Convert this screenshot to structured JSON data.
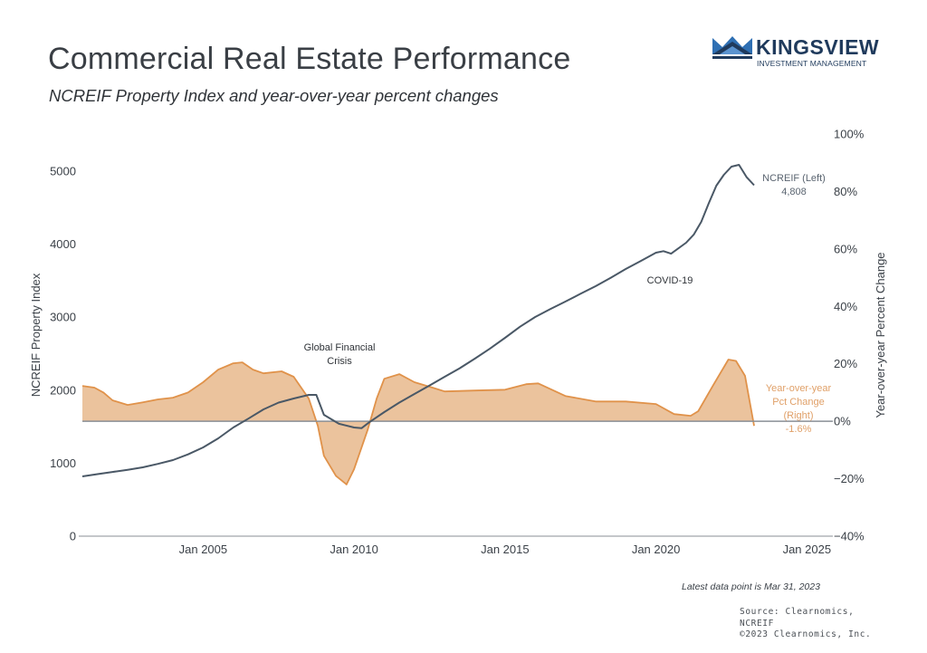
{
  "header": {
    "title": "Commercial Real Estate Performance",
    "subtitle": "NCREIF Property Index and year-over-year percent changes"
  },
  "logo": {
    "name": "KINGSVIEW",
    "tagline": "INVESTMENT MANAGEMENT",
    "icon": "crown-icon",
    "color": "#1f3a5c",
    "accent": "#2e6fb3"
  },
  "footer": {
    "note": "Latest data point is Mar 31, 2023",
    "source_lines": [
      "Source: Clearnomics,",
      "NCREIF",
      "©2023 Clearnomics, Inc."
    ]
  },
  "chart_data": {
    "type": "line",
    "title": "Commercial Real Estate Performance",
    "subtitle": "NCREIF Property Index and year-over-year percent changes",
    "xlabel": "",
    "ylabel_left": "NCREIF Property Index",
    "ylabel_right": "Year-over-year Percent Change",
    "x_range": [
      2001.0,
      2025.8
    ],
    "ylim_left": [
      0,
      5000
    ],
    "ylim_right": [
      -40,
      100
    ],
    "x_ticks": [
      {
        "value": 2005,
        "label": "Jan 2005"
      },
      {
        "value": 2010,
        "label": "Jan 2010"
      },
      {
        "value": 2015,
        "label": "Jan 2015"
      },
      {
        "value": 2020,
        "label": "Jan 2020"
      },
      {
        "value": 2025,
        "label": "Jan 2025"
      }
    ],
    "y_ticks_left": [
      "0",
      "1000",
      "2000",
      "3000",
      "4000",
      "5000"
    ],
    "y_tick_values_left": [
      0,
      1000,
      2000,
      3000,
      4000,
      5000
    ],
    "y_ticks_right": [
      "−40%",
      "−20%",
      "0%",
      "20%",
      "40%",
      "60%",
      "80%",
      "100%"
    ],
    "y_tick_values_right": [
      -40,
      -20,
      0,
      20,
      40,
      60,
      80,
      100
    ],
    "grid": false,
    "colors": {
      "line": "#4a5866",
      "area_fill": "#ebc39d",
      "area_stroke": "#e0924a",
      "zero_line": "#8a8f96"
    },
    "series": [
      {
        "name": "NCREIF (Left)",
        "axis": "left",
        "kind": "line",
        "end_label": "4,808",
        "x": [
          2001.0,
          2001.5,
          2002.0,
          2002.5,
          2003.0,
          2003.5,
          2004.0,
          2004.5,
          2005.0,
          2005.5,
          2006.0,
          2006.5,
          2007.0,
          2007.5,
          2008.0,
          2008.5,
          2008.75,
          2009.0,
          2009.5,
          2010.0,
          2010.25,
          2010.5,
          2011.0,
          2011.5,
          2012.0,
          2012.5,
          2013.0,
          2013.5,
          2014.0,
          2014.5,
          2015.0,
          2015.5,
          2016.0,
          2016.5,
          2017.0,
          2017.5,
          2018.0,
          2018.5,
          2019.0,
          2019.5,
          2020.0,
          2020.25,
          2020.5,
          2021.0,
          2021.25,
          2021.5,
          2021.75,
          2022.0,
          2022.25,
          2022.5,
          2022.75,
          2023.0,
          2023.25
        ],
        "values": [
          819,
          850,
          880,
          910,
          943,
          990,
          1042,
          1120,
          1216,
          1340,
          1489,
          1610,
          1737,
          1830,
          1886,
          1935,
          1935,
          1663,
          1540,
          1489,
          1480,
          1560,
          1700,
          1830,
          1948,
          2065,
          2184,
          2300,
          2432,
          2570,
          2717,
          2870,
          3002,
          3110,
          3213,
          3320,
          3424,
          3540,
          3660,
          3770,
          3883,
          3905,
          3870,
          4020,
          4130,
          4305,
          4560,
          4801,
          4950,
          5062,
          5087,
          4920,
          4808
        ]
      },
      {
        "name": "Year-over-year Pct Change (Right)",
        "axis": "right",
        "kind": "area",
        "end_label": "-1.6%",
        "x": [
          2001.0,
          2001.4,
          2001.7,
          2002.0,
          2002.5,
          2003.0,
          2003.5,
          2004.0,
          2004.5,
          2005.0,
          2005.5,
          2006.0,
          2006.3,
          2006.65,
          2007.0,
          2007.6,
          2008.0,
          2008.5,
          2008.8,
          2009.0,
          2009.4,
          2009.75,
          2010.0,
          2010.45,
          2010.75,
          2011.0,
          2011.5,
          2012.0,
          2012.6,
          2013.0,
          2014.0,
          2015.0,
          2015.7,
          2016.1,
          2017.0,
          2018.0,
          2019.0,
          2020.0,
          2020.6,
          2021.15,
          2021.4,
          2021.9,
          2022.4,
          2022.65,
          2022.95,
          2023.25
        ],
        "values": [
          12.3,
          11.7,
          10.0,
          7.3,
          5.7,
          6.6,
          7.6,
          8.2,
          10.0,
          13.6,
          18.0,
          20.2,
          20.5,
          18.0,
          16.7,
          17.4,
          15.5,
          7.9,
          -1.6,
          -12.0,
          -19.0,
          -22.0,
          -16.7,
          -3.0,
          7.9,
          14.8,
          16.4,
          13.6,
          11.7,
          10.4,
          10.7,
          11.0,
          12.9,
          13.2,
          8.8,
          6.9,
          6.9,
          6.0,
          2.5,
          1.9,
          3.5,
          12.6,
          21.5,
          21.0,
          15.8,
          -1.6
        ]
      }
    ],
    "legend_labels": {
      "line": [
        "NCREIF (Left)",
        "4,808"
      ],
      "area": [
        "Year-over-year",
        "Pct Change",
        "(Right)",
        "-1.6%"
      ]
    },
    "annotations": [
      {
        "text_lines": [
          "Global Financial",
          "Crisis"
        ],
        "x": 2009.0,
        "y_left": 2500
      },
      {
        "text_lines": [
          "COVID-19"
        ],
        "x": 2020.3,
        "y_left": 3500
      }
    ],
    "legend": "inline-right"
  }
}
